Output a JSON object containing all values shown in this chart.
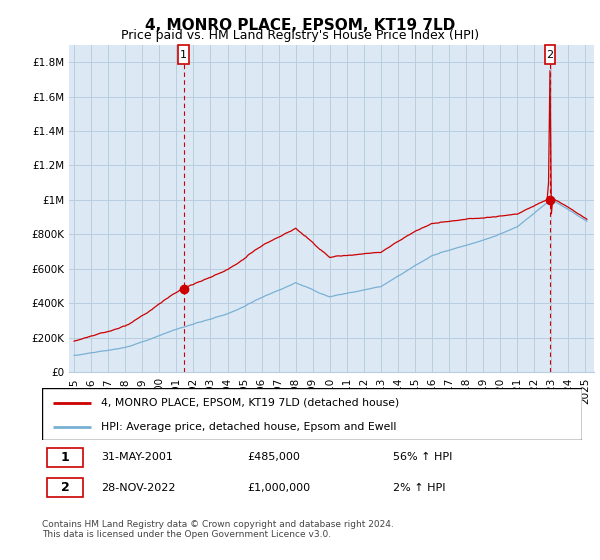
{
  "title": "4, MONRO PLACE, EPSOM, KT19 7LD",
  "subtitle": "Price paid vs. HM Land Registry's House Price Index (HPI)",
  "ylim": [
    0,
    1900000
  ],
  "yticks": [
    0,
    200000,
    400000,
    600000,
    800000,
    1000000,
    1200000,
    1400000,
    1600000,
    1800000
  ],
  "ytick_labels": [
    "£0",
    "£200K",
    "£400K",
    "£600K",
    "£800K",
    "£1M",
    "£1.2M",
    "£1.4M",
    "£1.6M",
    "£1.8M"
  ],
  "sale1_date_num": 2001.42,
  "sale1_price": 485000,
  "sale1_date_str": "31-MAY-2001",
  "sale1_pct": "56% ↑ HPI",
  "sale2_date_num": 2022.91,
  "sale2_price": 1000000,
  "sale2_date_str": "28-NOV-2022",
  "sale2_pct": "2% ↑ HPI",
  "line_color_price": "#cc0000",
  "line_color_hpi": "#7ab0d4",
  "vline_color": "#cc0000",
  "background_color": "#dce9f5",
  "grid_color": "#b8cfe0",
  "outer_bg": "#ffffff",
  "title_fontsize": 11,
  "subtitle_fontsize": 9,
  "tick_fontsize": 7.5,
  "legend_label1": "4, MONRO PLACE, EPSOM, KT19 7LD (detached house)",
  "legend_label2": "HPI: Average price, detached house, Epsom and Ewell",
  "footer": "Contains HM Land Registry data © Crown copyright and database right 2024.\nThis data is licensed under the Open Government Licence v3.0.",
  "xlim_start": 1994.7,
  "xlim_end": 2025.5
}
